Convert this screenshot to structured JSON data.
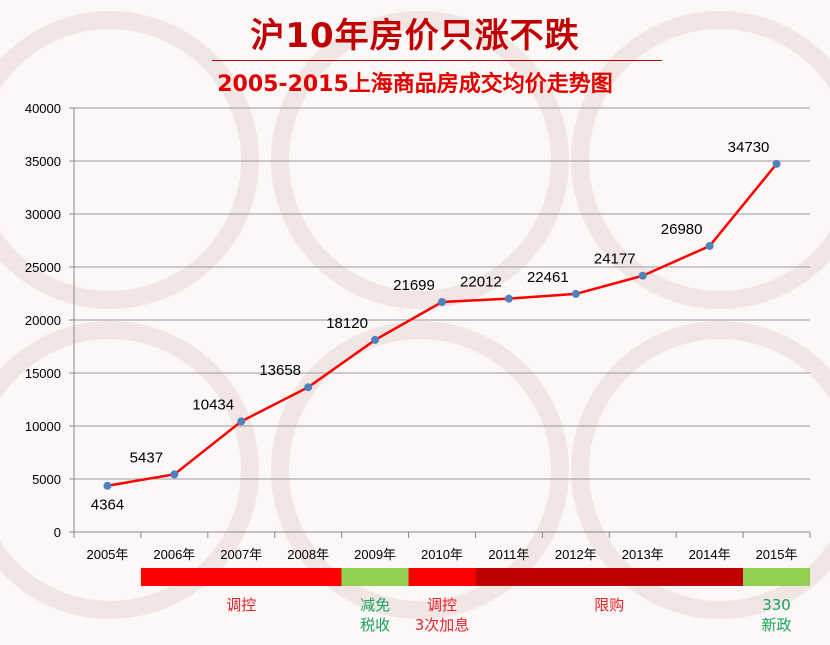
{
  "header": {
    "title": "沪10年房价只涨不跌",
    "subtitle": "2005-2015上海商品房成交均价走势图"
  },
  "chart_data": {
    "type": "line",
    "categories": [
      "2005年",
      "2006年",
      "2007年",
      "2008年",
      "2009年",
      "2010年",
      "2011年",
      "2012年",
      "2013年",
      "2014年",
      "2015年"
    ],
    "values": [
      4364,
      5437,
      10434,
      13658,
      18120,
      21699,
      22012,
      22461,
      24177,
      26980,
      34730
    ],
    "data_labels": [
      "4364",
      "5437",
      "10434",
      "13658",
      "18120",
      "21699",
      "22012",
      "22461",
      "24177",
      "26980",
      "34730"
    ],
    "ylim": [
      0,
      40000
    ],
    "yticks": [
      "0",
      "5000",
      "10000",
      "15000",
      "20000",
      "25000",
      "30000",
      "35000",
      "40000"
    ],
    "grid": true,
    "line_color": "#ff0000",
    "marker_color": "#4f81bd"
  },
  "policy_bands": [
    {
      "from": 1,
      "to": 4,
      "color": "#ff0000",
      "label_lines": [
        "调控"
      ],
      "text_color": "#e8222a"
    },
    {
      "from": 4,
      "to": 5,
      "color": "#92d050",
      "label_lines": [
        "减免",
        "税收"
      ],
      "text_color": "#1aa260"
    },
    {
      "from": 5,
      "to": 6,
      "color": "#ff0000",
      "label_lines": [
        "调控",
        "3次加息"
      ],
      "text_color": "#e8222a"
    },
    {
      "from": 6,
      "to": 10,
      "color": "#c00000",
      "label_lines": [
        "限购"
      ],
      "text_color": "#e8222a"
    },
    {
      "from": 10,
      "to": 11,
      "color": "#92d050",
      "label_lines": [
        "330",
        "新政"
      ],
      "text_color": "#1aa260"
    }
  ]
}
